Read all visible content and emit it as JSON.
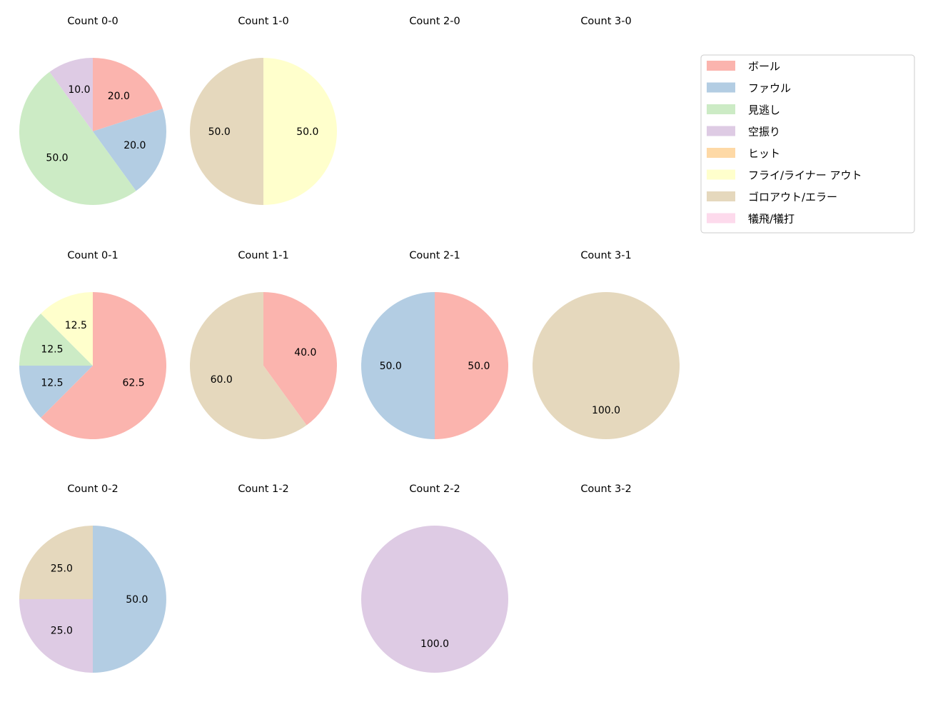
{
  "chart_data": {
    "type": "pie",
    "categories": [
      "ボール",
      "ファウル",
      "見逃し",
      "空振り",
      "ヒット",
      "フライ/ライナー アウト",
      "ゴロアウト/エラー",
      "犠飛/犠打"
    ],
    "colors": [
      "#fbb4ae",
      "#b3cde3",
      "#ccebc5",
      "#decbe4",
      "#fed9a6",
      "#ffffcc",
      "#e5d8bd",
      "#fddaec"
    ],
    "legend_position": "right",
    "start_angle": 90,
    "direction": "clockwise",
    "label_format": "%.1f",
    "pies": [
      {
        "title": "Count 0-0",
        "values": [
          20,
          20,
          50,
          10,
          0,
          0,
          0,
          0
        ]
      },
      {
        "title": "Count 1-0",
        "values": [
          0,
          0,
          0,
          0,
          0,
          50,
          50,
          0
        ]
      },
      {
        "title": "Count 2-0",
        "values": []
      },
      {
        "title": "Count 3-0",
        "values": []
      },
      {
        "title": "Count 0-1",
        "values": [
          62.5,
          12.5,
          12.5,
          0,
          0,
          12.5,
          0,
          0
        ]
      },
      {
        "title": "Count 1-1",
        "values": [
          40,
          0,
          0,
          0,
          0,
          0,
          60,
          0
        ]
      },
      {
        "title": "Count 2-1",
        "values": [
          50,
          50,
          0,
          0,
          0,
          0,
          0,
          0
        ]
      },
      {
        "title": "Count 3-1",
        "values": [
          0,
          0,
          0,
          0,
          0,
          0,
          100,
          0
        ]
      },
      {
        "title": "Count 0-2",
        "values": [
          0,
          50,
          0,
          25,
          0,
          0,
          25,
          0
        ]
      },
      {
        "title": "Count 1-2",
        "values": []
      },
      {
        "title": "Count 2-2",
        "values": [
          0,
          0,
          0,
          100,
          0,
          0,
          0,
          0
        ]
      },
      {
        "title": "Count 3-2",
        "values": []
      }
    ]
  }
}
